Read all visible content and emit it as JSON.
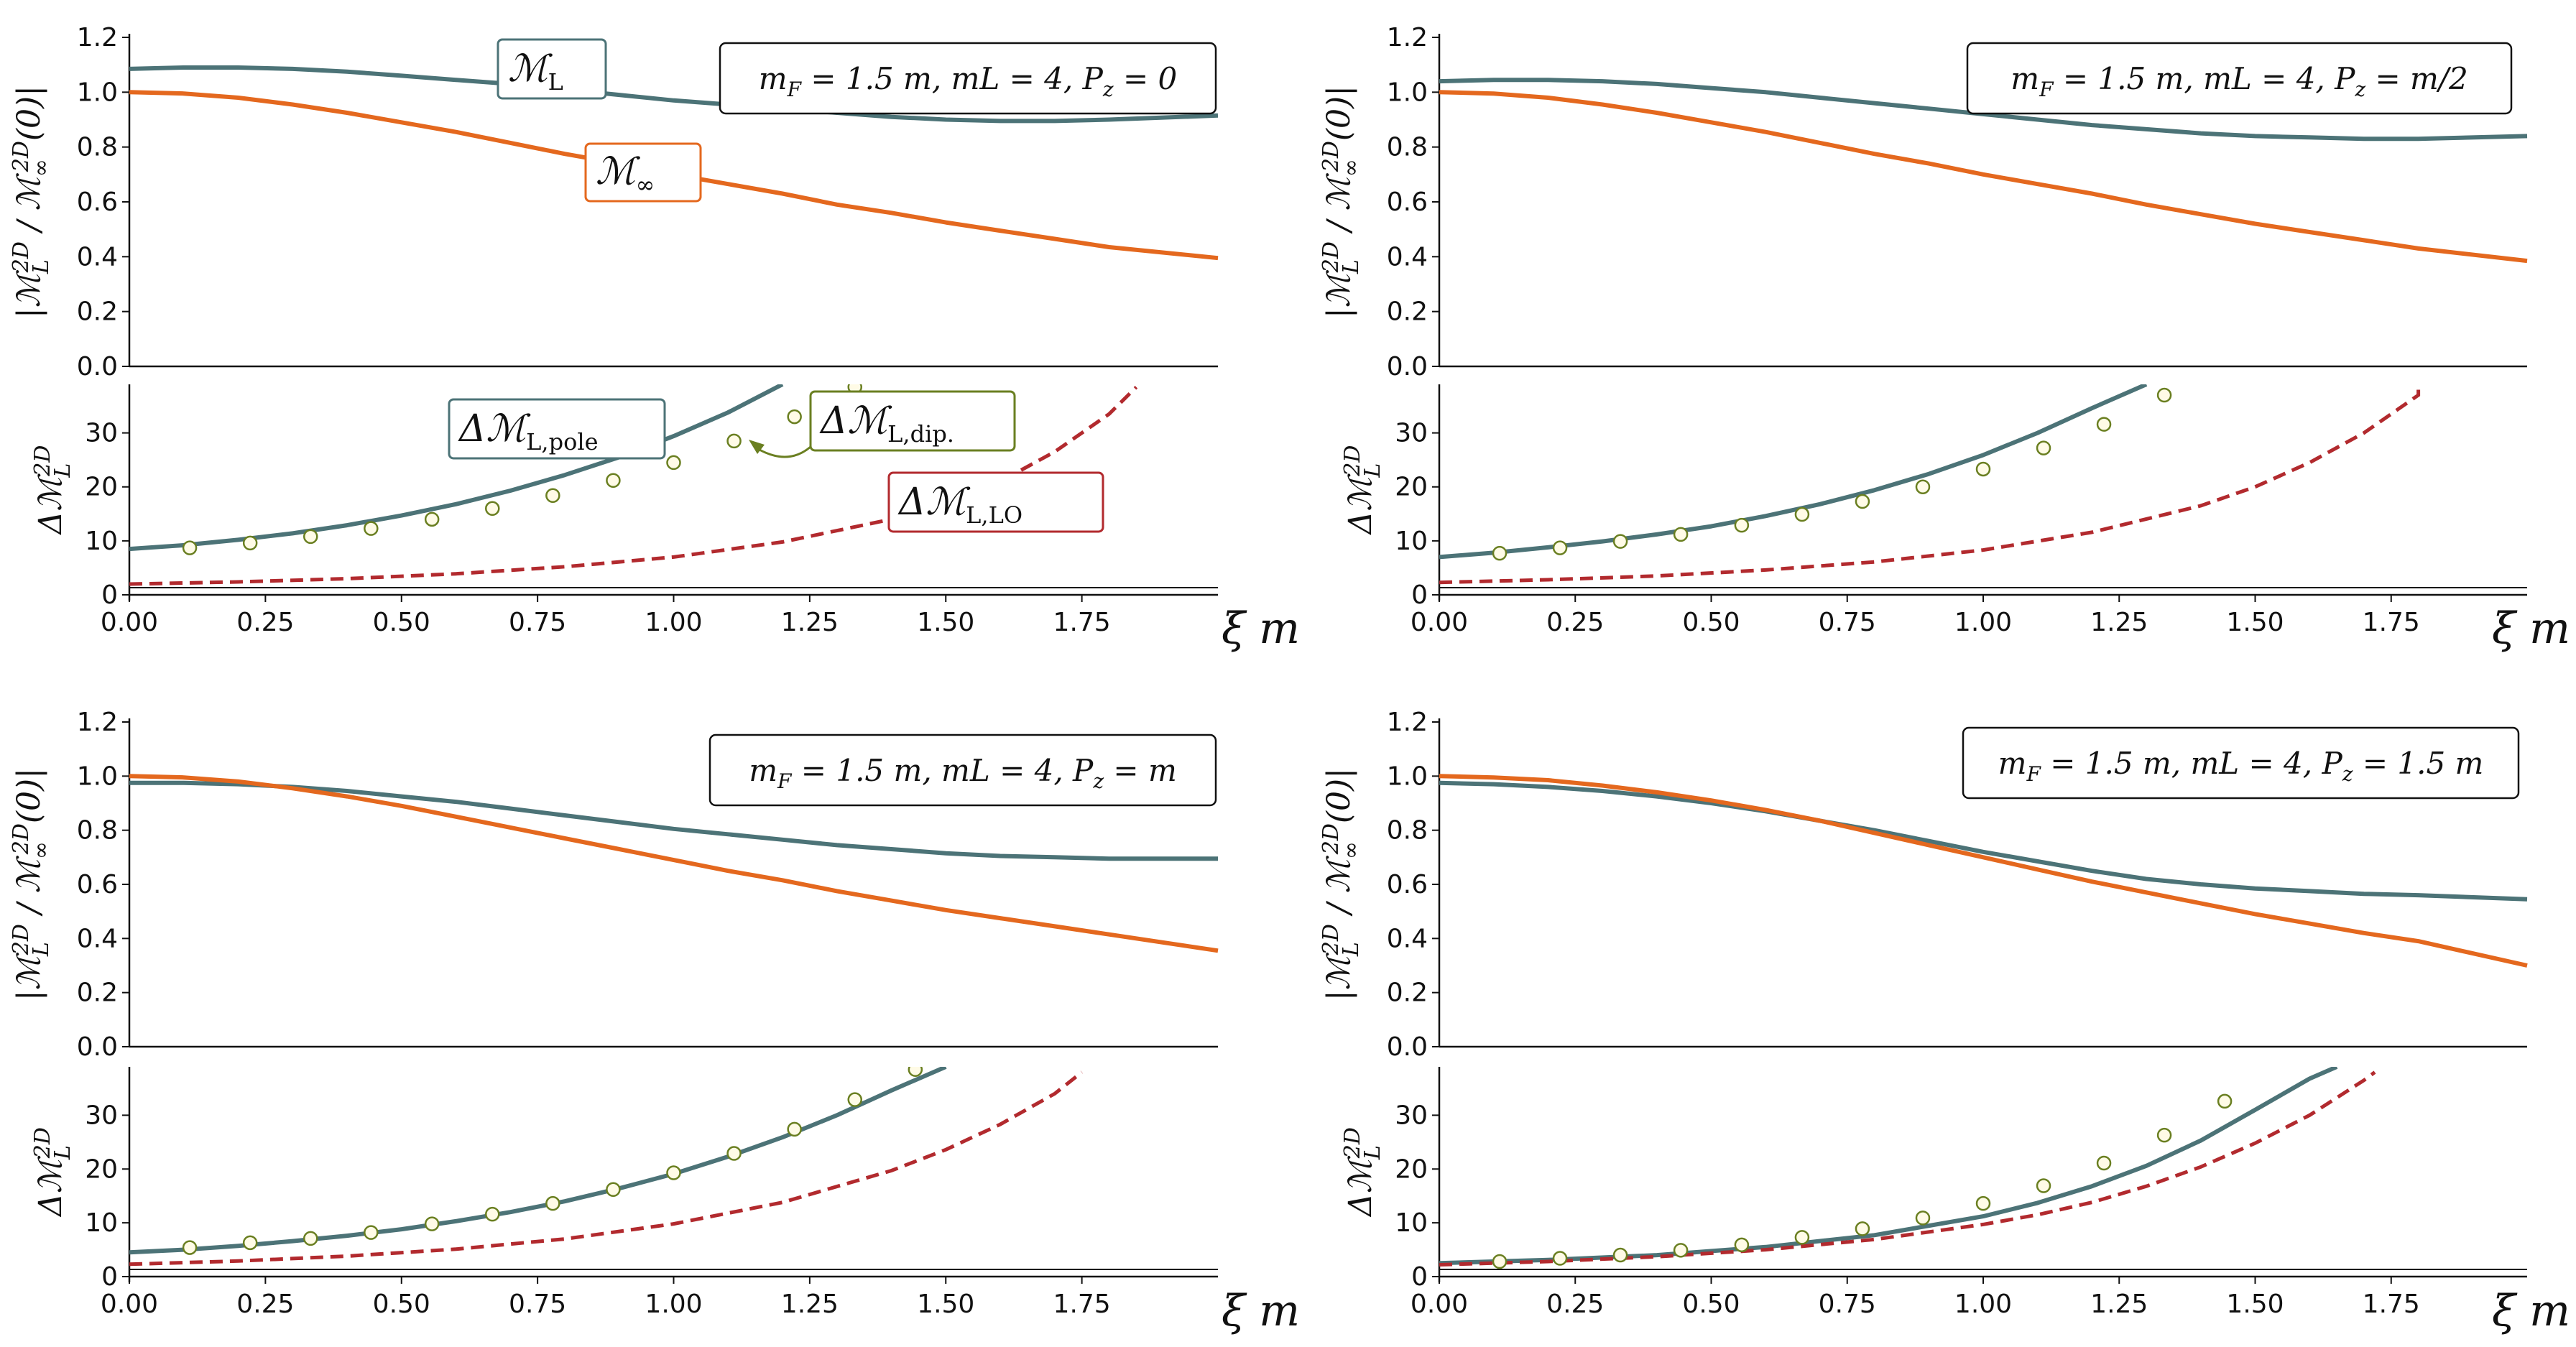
{
  "colors": {
    "finite": "#4c7377",
    "infinite": "#e4681e",
    "lo": "#b22a2e",
    "dipole_edge": "#6a7f21",
    "dipole_fill": "#fffbe6",
    "lo_edge": "#b22a2e",
    "infinite_edge": "#e4681e",
    "finite_edge": "#4c7377"
  },
  "chart_data": [
    {
      "type": "line",
      "panel": "top-left",
      "params": "m_F = 1.5 m,  mL = 4,  P_z = 0",
      "xlabel": "ξ m",
      "top": {
        "ylabel": "|M_L^{2D} / M_∞^{2D}(0)|",
        "ylim": [
          0,
          1.2
        ],
        "yticks": [
          "0.0",
          "0.2",
          "0.4",
          "0.6",
          "0.8",
          "1.0",
          "1.2"
        ],
        "series": [
          {
            "name": "M_L",
            "x": [
              0,
              0.1,
              0.2,
              0.3,
              0.4,
              0.5,
              0.6,
              0.7,
              0.8,
              0.9,
              1.0,
              1.1,
              1.2,
              1.3,
              1.4,
              1.5,
              1.6,
              1.7,
              1.8,
              2.0
            ],
            "y": [
              1.085,
              1.09,
              1.09,
              1.085,
              1.075,
              1.06,
              1.045,
              1.03,
              1.01,
              0.99,
              0.97,
              0.955,
              0.94,
              0.925,
              0.91,
              0.9,
              0.895,
              0.895,
              0.9,
              0.915
            ]
          },
          {
            "name": "M_∞",
            "x": [
              0,
              0.1,
              0.2,
              0.3,
              0.4,
              0.5,
              0.6,
              0.7,
              0.8,
              0.9,
              1.0,
              1.1,
              1.2,
              1.3,
              1.4,
              1.5,
              1.6,
              1.7,
              1.8,
              2.0
            ],
            "y": [
              1.0,
              0.995,
              0.98,
              0.955,
              0.925,
              0.89,
              0.855,
              0.815,
              0.775,
              0.74,
              0.7,
              0.665,
              0.63,
              0.59,
              0.56,
              0.525,
              0.495,
              0.465,
              0.435,
              0.395
            ]
          }
        ]
      },
      "bottom": {
        "ylabel": "ΔM_L^{2D}",
        "ylim": [
          0,
          39
        ],
        "yticks": [
          "0",
          "10",
          "20",
          "30"
        ],
        "series": [
          {
            "name": "ΔM_L,pole",
            "x": [
              0,
              0.1,
              0.2,
              0.3,
              0.4,
              0.5,
              0.6,
              0.7,
              0.8,
              0.9,
              1.0,
              1.1,
              1.2
            ],
            "y": [
              8.5,
              9.2,
              10.2,
              11.4,
              12.9,
              14.7,
              16.8,
              19.3,
              22.2,
              25.5,
              29.4,
              33.8,
              39.0
            ]
          },
          {
            "name": "ΔM_L,LO",
            "x": [
              0,
              0.2,
              0.4,
              0.6,
              0.8,
              1.0,
              1.2,
              1.4,
              1.5,
              1.6,
              1.7,
              1.8,
              1.85
            ],
            "y": [
              2.0,
              2.4,
              3.0,
              3.9,
              5.2,
              7.0,
              9.8,
              14.0,
              17.0,
              21.0,
              26.5,
              33.5,
              38.5
            ]
          }
        ],
        "points": {
          "name": "ΔM_L,dip.",
          "x": [
            0.111,
            0.222,
            0.333,
            0.444,
            0.556,
            0.667,
            0.778,
            0.889,
            1.0,
            1.111,
            1.222,
            1.333
          ],
          "y": [
            8.7,
            9.6,
            10.8,
            12.3,
            14.0,
            16.0,
            18.4,
            21.2,
            24.5,
            28.5,
            33.0,
            38.5
          ]
        }
      },
      "xticks": [
        "0.00",
        "0.25",
        "0.50",
        "0.75",
        "1.00",
        "1.25",
        "1.50",
        "1.75"
      ],
      "xlim": [
        0,
        2.0
      ]
    },
    {
      "type": "line",
      "panel": "top-right",
      "params": "m_F = 1.5 m,  mL = 4,  P_z = m/2",
      "xlabel": "ξ m",
      "top": {
        "ylabel": "|M_L^{2D} / M_∞^{2D}(0)|",
        "ylim": [
          0,
          1.2
        ],
        "yticks": [
          "0.0",
          "0.2",
          "0.4",
          "0.6",
          "0.8",
          "1.0",
          "1.2"
        ],
        "series": [
          {
            "name": "M_L",
            "x": [
              0,
              0.1,
              0.2,
              0.3,
              0.4,
              0.5,
              0.6,
              0.7,
              0.8,
              0.9,
              1.0,
              1.1,
              1.2,
              1.3,
              1.4,
              1.5,
              1.6,
              1.7,
              1.8,
              2.0
            ],
            "y": [
              1.04,
              1.045,
              1.045,
              1.04,
              1.03,
              1.015,
              1.0,
              0.98,
              0.96,
              0.94,
              0.92,
              0.9,
              0.88,
              0.865,
              0.85,
              0.84,
              0.835,
              0.83,
              0.83,
              0.84
            ]
          },
          {
            "name": "M_∞",
            "x": [
              0,
              0.1,
              0.2,
              0.3,
              0.4,
              0.5,
              0.6,
              0.7,
              0.8,
              0.9,
              1.0,
              1.1,
              1.2,
              1.3,
              1.4,
              1.5,
              1.6,
              1.7,
              1.8,
              2.0
            ],
            "y": [
              1.0,
              0.995,
              0.98,
              0.955,
              0.925,
              0.89,
              0.855,
              0.815,
              0.775,
              0.74,
              0.7,
              0.665,
              0.63,
              0.59,
              0.555,
              0.52,
              0.49,
              0.46,
              0.43,
              0.385
            ]
          }
        ]
      },
      "bottom": {
        "ylabel": "ΔM_L^{2D}",
        "ylim": [
          0,
          39
        ],
        "yticks": [
          "0",
          "10",
          "20",
          "30"
        ],
        "series": [
          {
            "name": "ΔM_L,pole",
            "x": [
              0,
              0.1,
              0.2,
              0.3,
              0.4,
              0.5,
              0.6,
              0.7,
              0.8,
              0.9,
              1.0,
              1.1,
              1.2,
              1.3
            ],
            "y": [
              7.0,
              7.8,
              8.8,
              9.9,
              11.2,
              12.7,
              14.6,
              16.8,
              19.4,
              22.4,
              25.9,
              30.0,
              34.6,
              39.0
            ]
          },
          {
            "name": "ΔM_L,LO",
            "x": [
              0,
              0.2,
              0.4,
              0.6,
              0.8,
              1.0,
              1.2,
              1.4,
              1.5,
              1.6,
              1.7,
              1.8,
              1.8
            ],
            "y": [
              2.3,
              2.8,
              3.5,
              4.6,
              6.1,
              8.3,
              11.6,
              16.5,
              20.0,
              24.5,
              30.0,
              37.0,
              38.0
            ]
          }
        ],
        "points": {
          "name": "ΔM_L,dip.",
          "x": [
            0.111,
            0.222,
            0.333,
            0.444,
            0.556,
            0.667,
            0.778,
            0.889,
            1.0,
            1.111,
            1.222,
            1.333
          ],
          "y": [
            7.7,
            8.7,
            9.9,
            11.2,
            12.9,
            14.9,
            17.3,
            20.0,
            23.3,
            27.2,
            31.6,
            37.0
          ]
        }
      },
      "xticks": [
        "0.00",
        "0.25",
        "0.50",
        "0.75",
        "1.00",
        "1.25",
        "1.50",
        "1.75"
      ],
      "xlim": [
        0,
        2.0
      ]
    },
    {
      "type": "line",
      "panel": "bottom-left",
      "params": "m_F = 1.5 m,  mL = 4,  P_z = m",
      "xlabel": "ξ m",
      "top": {
        "ylabel": "|M_L^{2D} / M_∞^{2D}(0)|",
        "ylim": [
          0,
          1.2
        ],
        "yticks": [
          "0.0",
          "0.2",
          "0.4",
          "0.6",
          "0.8",
          "1.0",
          "1.2"
        ],
        "series": [
          {
            "name": "M_L",
            "x": [
              0,
              0.1,
              0.2,
              0.3,
              0.4,
              0.5,
              0.6,
              0.7,
              0.8,
              0.9,
              1.0,
              1.1,
              1.2,
              1.3,
              1.4,
              1.5,
              1.6,
              1.7,
              1.8,
              2.0
            ],
            "y": [
              0.975,
              0.975,
              0.97,
              0.96,
              0.945,
              0.925,
              0.905,
              0.88,
              0.855,
              0.83,
              0.805,
              0.785,
              0.765,
              0.745,
              0.73,
              0.715,
              0.705,
              0.7,
              0.695,
              0.695
            ]
          },
          {
            "name": "M_∞",
            "x": [
              0,
              0.1,
              0.2,
              0.3,
              0.4,
              0.5,
              0.6,
              0.7,
              0.8,
              0.9,
              1.0,
              1.1,
              1.2,
              1.3,
              1.4,
              1.5,
              1.6,
              1.7,
              1.8,
              2.0
            ],
            "y": [
              1.0,
              0.995,
              0.98,
              0.955,
              0.925,
              0.89,
              0.85,
              0.81,
              0.77,
              0.73,
              0.69,
              0.65,
              0.615,
              0.575,
              0.54,
              0.505,
              0.475,
              0.445,
              0.415,
              0.355
            ]
          }
        ]
      },
      "bottom": {
        "ylabel": "ΔM_L^{2D}",
        "ylim": [
          0,
          39
        ],
        "yticks": [
          "0",
          "10",
          "20",
          "30"
        ],
        "series": [
          {
            "name": "ΔM_L,pole",
            "x": [
              0,
              0.1,
              0.2,
              0.3,
              0.4,
              0.5,
              0.6,
              0.7,
              0.8,
              0.9,
              1.0,
              1.1,
              1.2,
              1.3,
              1.4,
              1.5
            ],
            "y": [
              4.5,
              5.0,
              5.7,
              6.6,
              7.6,
              8.8,
              10.3,
              12.0,
              14.0,
              16.4,
              19.1,
              22.3,
              25.9,
              30.0,
              34.6,
              39.0
            ]
          },
          {
            "name": "ΔM_L,LO",
            "x": [
              0,
              0.2,
              0.4,
              0.6,
              0.8,
              1.0,
              1.2,
              1.4,
              1.5,
              1.6,
              1.7,
              1.75
            ],
            "y": [
              2.3,
              2.9,
              3.8,
              5.1,
              7.0,
              9.8,
              13.8,
              19.7,
              23.6,
              28.3,
              34.0,
              38.0
            ]
          }
        ],
        "points": {
          "name": "ΔM_L,dip.",
          "x": [
            0.111,
            0.222,
            0.333,
            0.444,
            0.556,
            0.667,
            0.778,
            0.889,
            1.0,
            1.111,
            1.222,
            1.333,
            1.444
          ],
          "y": [
            5.4,
            6.3,
            7.1,
            8.2,
            9.8,
            11.6,
            13.6,
            16.2,
            19.3,
            22.9,
            27.4,
            32.9,
            38.5
          ]
        }
      },
      "xticks": [
        "0.00",
        "0.25",
        "0.50",
        "0.75",
        "1.00",
        "1.25",
        "1.50",
        "1.75"
      ],
      "xlim": [
        0,
        2.0
      ]
    },
    {
      "type": "line",
      "panel": "bottom-right",
      "params": "m_F = 1.5 m,  mL = 4,  P_z = 1.5 m",
      "xlabel": "ξ m",
      "top": {
        "ylabel": "|M_L^{2D} / M_∞^{2D}(0)|",
        "ylim": [
          0,
          1.2
        ],
        "yticks": [
          "0.0",
          "0.2",
          "0.4",
          "0.6",
          "0.8",
          "1.0",
          "1.2"
        ],
        "series": [
          {
            "name": "M_L",
            "x": [
              0,
              0.1,
              0.2,
              0.3,
              0.4,
              0.5,
              0.6,
              0.7,
              0.8,
              0.9,
              1.0,
              1.1,
              1.2,
              1.3,
              1.4,
              1.5,
              1.6,
              1.7,
              1.8,
              2.0
            ],
            "y": [
              0.975,
              0.97,
              0.96,
              0.945,
              0.925,
              0.9,
              0.87,
              0.835,
              0.8,
              0.76,
              0.72,
              0.685,
              0.65,
              0.62,
              0.6,
              0.585,
              0.575,
              0.565,
              0.56,
              0.545
            ]
          },
          {
            "name": "M_∞",
            "x": [
              0,
              0.1,
              0.2,
              0.3,
              0.4,
              0.5,
              0.6,
              0.7,
              0.8,
              0.9,
              1.0,
              1.1,
              1.2,
              1.3,
              1.4,
              1.5,
              1.6,
              1.7,
              1.8,
              2.0
            ],
            "y": [
              1.0,
              0.995,
              0.985,
              0.965,
              0.94,
              0.91,
              0.875,
              0.835,
              0.79,
              0.745,
              0.7,
              0.655,
              0.61,
              0.57,
              0.53,
              0.49,
              0.455,
              0.42,
              0.39,
              0.3
            ]
          }
        ]
      },
      "bottom": {
        "ylabel": "ΔM_L^{2D}",
        "ylim": [
          0,
          39
        ],
        "yticks": [
          "0",
          "10",
          "20",
          "30"
        ],
        "series": [
          {
            "name": "ΔM_L,pole",
            "x": [
              0,
              0.2,
              0.4,
              0.6,
              0.8,
              1.0,
              1.1,
              1.2,
              1.3,
              1.4,
              1.5,
              1.6,
              1.65
            ],
            "y": [
              2.5,
              3.1,
              4.0,
              5.5,
              7.7,
              11.2,
              13.7,
              16.8,
              20.6,
              25.3,
              31.0,
              36.8,
              39.0
            ]
          },
          {
            "name": "ΔM_L,LO",
            "x": [
              0,
              0.2,
              0.4,
              0.6,
              0.8,
              1.0,
              1.1,
              1.2,
              1.3,
              1.4,
              1.5,
              1.6,
              1.7,
              1.72
            ],
            "y": [
              2.2,
              2.8,
              3.7,
              5.0,
              6.9,
              9.7,
              11.5,
              13.8,
              16.8,
              20.4,
              24.8,
              30.0,
              36.5,
              38.0
            ]
          }
        ],
        "points": {
          "name": "ΔM_L,dip.",
          "x": [
            0.111,
            0.222,
            0.333,
            0.444,
            0.556,
            0.667,
            0.778,
            0.889,
            1.0,
            1.111,
            1.222,
            1.333,
            1.444
          ],
          "y": [
            2.8,
            3.4,
            4.0,
            4.9,
            5.9,
            7.3,
            8.9,
            10.9,
            13.6,
            16.9,
            21.1,
            26.3,
            32.6
          ]
        }
      },
      "xticks": [
        "0.00",
        "0.25",
        "0.50",
        "0.75",
        "1.00",
        "1.25",
        "1.50",
        "1.75"
      ],
      "xlim": [
        0,
        2.0
      ]
    }
  ],
  "legend": {
    "finite": {
      "main": "M",
      "sub": "L"
    },
    "infinite": {
      "main": "M",
      "sub": "∞"
    },
    "pole": {
      "main": "ΔM",
      "sub": "L,pole"
    },
    "dipole": {
      "main": "ΔM",
      "sub": "L,dip."
    },
    "lo": {
      "main": "ΔM",
      "sub": "L,LO"
    }
  }
}
